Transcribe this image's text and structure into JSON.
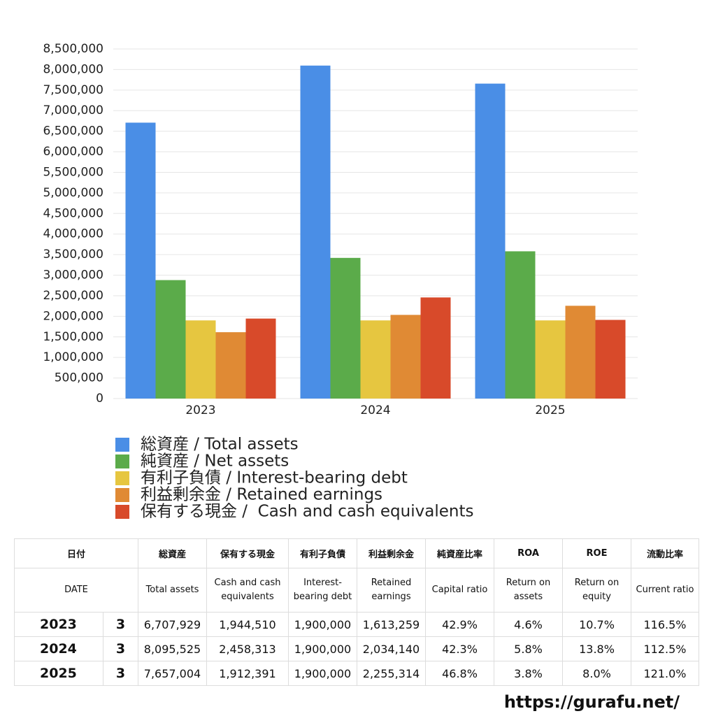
{
  "chart_data": {
    "type": "bar",
    "categories": [
      "2023",
      "2024",
      "2025"
    ],
    "series": [
      {
        "name": "総資産 / Total assets",
        "color": "#4a8ee6",
        "values": [
          6707929,
          8095525,
          7657004
        ]
      },
      {
        "name": "純資産 / Net assets",
        "color": "#5bab4a",
        "values": [
          2880000,
          3420000,
          3580000
        ]
      },
      {
        "name": "有利子負債 / Interest-bearing debt",
        "color": "#e6c640",
        "values": [
          1900000,
          1900000,
          1900000
        ]
      },
      {
        "name": "利益剰余金 / Retained earnings",
        "color": "#e08a34",
        "values": [
          1613259,
          2034140,
          2255314
        ]
      },
      {
        "name": "保有する現金 /  Cash and cash equivalents",
        "color": "#d84a2a",
        "values": [
          1944510,
          2458313,
          1912391
        ]
      }
    ],
    "ylim": [
      0,
      8500000
    ],
    "yticks": [
      0,
      {
        "value": 500000,
        "label": "500,000"
      },
      {
        "value": 1000000,
        "label": "1,000,000"
      },
      {
        "value": 1500000,
        "label": "1,500,000"
      },
      {
        "value": 2000000,
        "label": "2,000,000"
      },
      {
        "value": 2500000,
        "label": "2,500,000"
      },
      {
        "value": 3000000,
        "label": "3,000,000"
      },
      {
        "value": 3500000,
        "label": "3,500,000"
      },
      {
        "value": 4000000,
        "label": "4,000,000"
      },
      {
        "value": 4500000,
        "label": "4,500,000"
      },
      {
        "value": 5000000,
        "label": "5,000,000"
      },
      {
        "value": 5500000,
        "label": "5,500,000"
      },
      {
        "value": 6000000,
        "label": "6,000,000"
      },
      {
        "value": 6500000,
        "label": "6,500,000"
      },
      {
        "value": 7000000,
        "label": "7,000,000"
      },
      {
        "value": 7500000,
        "label": "7,500,000"
      },
      {
        "value": 8000000,
        "label": "8,000,000"
      },
      {
        "value": 8500000,
        "label": "8,500,000"
      }
    ],
    "grid": true
  },
  "table": {
    "header_jp": [
      "日付",
      "総資産",
      "保有する現金",
      "有利子負債",
      "利益剰余金",
      "純資産比率",
      "ROA",
      "ROE",
      "流動比率"
    ],
    "header_en": [
      "DATE",
      "Total assets",
      "Cash and cash equivalents",
      "Interest-bearing debt",
      "Retained earnings",
      "Capital ratio",
      "Return on assets",
      "Return on equity",
      "Current ratio"
    ],
    "rows": [
      [
        "2023",
        "3",
        "6,707,929",
        "1,944,510",
        "1,900,000",
        "1,613,259",
        "42.9%",
        "4.6%",
        "10.7%",
        "116.5%"
      ],
      [
        "2024",
        "3",
        "8,095,525",
        "2,458,313",
        "1,900,000",
        "2,034,140",
        "42.3%",
        "5.8%",
        "13.8%",
        "112.5%"
      ],
      [
        "2025",
        "3",
        "7,657,004",
        "1,912,391",
        "1,900,000",
        "2,255,314",
        "46.8%",
        "3.8%",
        "8.0%",
        "121.0%"
      ]
    ]
  },
  "footer": {
    "url": "https://gurafu.net/"
  }
}
